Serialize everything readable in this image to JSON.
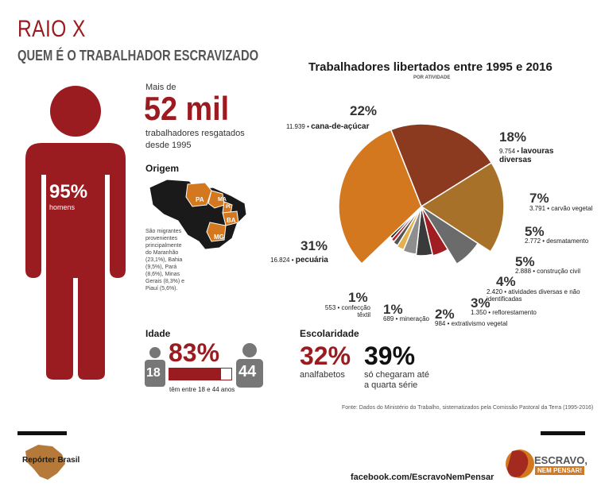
{
  "header": {
    "title": "RAIO X",
    "subtitle": "QUEM É O TRABALHADOR ESCRAVIZADO"
  },
  "figure": {
    "percent": "95%",
    "label": "homens",
    "color": "#9b1c20"
  },
  "total": {
    "prefix": "Mais de",
    "number": "52 mil",
    "desc_line1": "trabalhadores resgatados",
    "desc_line2": "desde 1995"
  },
  "origem": {
    "title": "Origem",
    "states": [
      "PA",
      "MA",
      "PI",
      "BA",
      "MG"
    ],
    "note": [
      "São migrantes",
      "provenientes",
      "principalmente",
      "do Maranhão",
      "(23,1%), Bahia",
      "(9,5%), Pará",
      "(8,6%), Minas",
      "Gerais (8,3%) e",
      "Piauí (5,6%)."
    ]
  },
  "idade": {
    "title": "Idade",
    "percent": "83%",
    "age_min": "18",
    "age_max": "44",
    "caption": "têm entre 18 e 44 anos",
    "fill_fraction": 0.83
  },
  "escolaridade": {
    "title": "Escolaridade",
    "pct1": "32%",
    "label1": "analfabetos",
    "pct2": "39%",
    "label2_line1": "só chegaram até",
    "label2_line2": "a quarta série"
  },
  "chart_title": "Trabalhadores libertados entre 1995 e 2016",
  "chart_subtitle": "POR ATIVIDADE",
  "chart_data": {
    "type": "pie",
    "title": "Trabalhadores libertados entre 1995 e 2016",
    "subtitle": "POR ATIVIDADE",
    "slices": [
      {
        "label": "cana-de-açúcar",
        "value": 11939,
        "value_text": "11.939",
        "pct": "22%",
        "color": "#8b3a1f"
      },
      {
        "label": "lavouras diversas",
        "value": 9754,
        "value_text": "9.754",
        "pct": "18%",
        "color": "#a8712a"
      },
      {
        "label": "carvão vegetal",
        "value": 3791,
        "value_text": "3.791",
        "pct": "7%",
        "color": "#6b6b6b"
      },
      {
        "label": "desmatamento",
        "value": 2772,
        "value_text": "2.772",
        "pct": "5%",
        "color": "#a01d22"
      },
      {
        "label": "construção civil",
        "value": 2888,
        "value_text": "2.888",
        "pct": "5%",
        "color": "#3a3a3a"
      },
      {
        "label": "atividades diversas e não identificadas",
        "value": 2420,
        "value_text": "2.420",
        "pct": "4%",
        "color": "#8e8e8e"
      },
      {
        "label": "reflorestamento",
        "value": 1350,
        "value_text": "1.350",
        "pct": "3%",
        "color": "#e3b24f"
      },
      {
        "label": "extrativismo vegetal",
        "value": 984,
        "value_text": "984",
        "pct": "2%",
        "color": "#555555"
      },
      {
        "label": "mineração",
        "value": 689,
        "value_text": "689",
        "pct": "1%",
        "color": "#b51e24"
      },
      {
        "label": "confecção têxtil",
        "value": 553,
        "value_text": "553",
        "pct": "1%",
        "color": "#1a1a1a"
      },
      {
        "label": "pecuária",
        "value": 16824,
        "value_text": "16.824",
        "pct": "31%",
        "color": "#d4781f"
      }
    ]
  },
  "source": "Fonte: Dados do Ministério do Trabalho, sistematizados pela Comissão Pastoral da Terra (1995-2016)",
  "footer": {
    "left_logo": "Repórter Brasil",
    "url": "facebook.com/EscravoNemPensar",
    "right_logo_line1": "ESCRAVO,",
    "right_logo_line2": "NEM PENSAR!"
  }
}
